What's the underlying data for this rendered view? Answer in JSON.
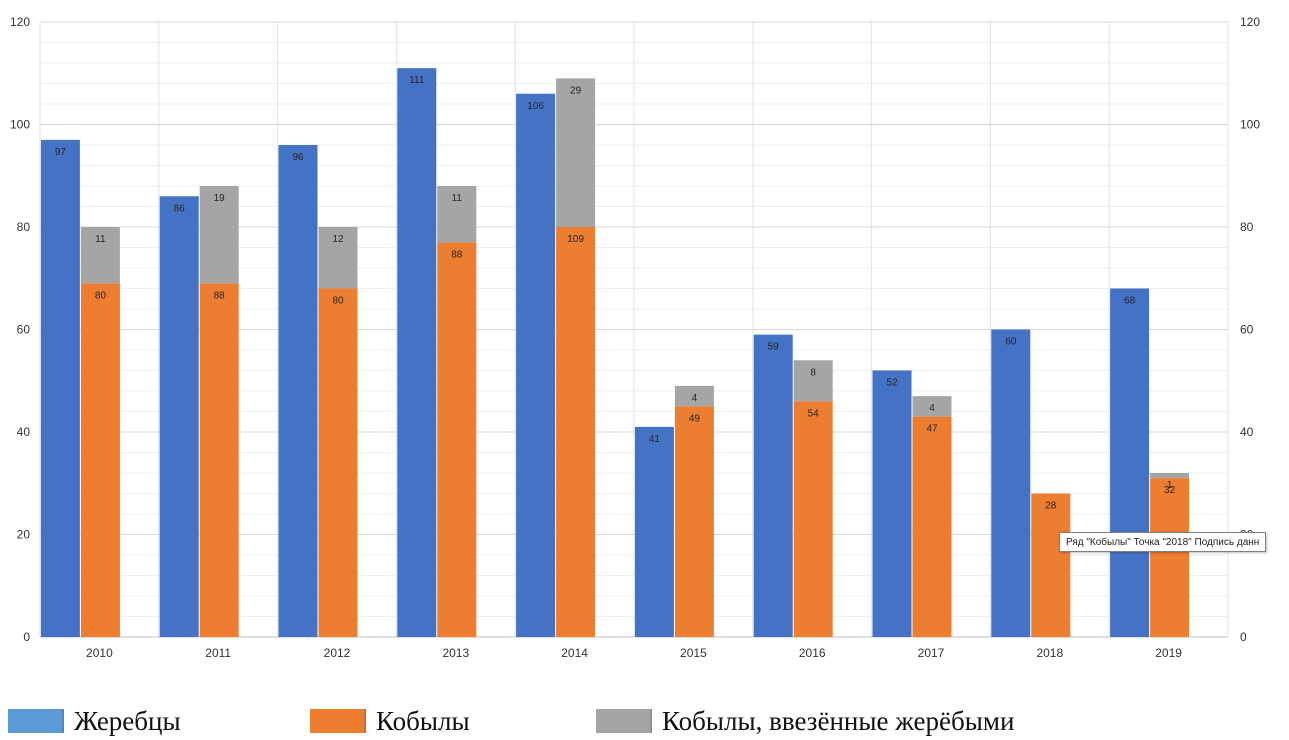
{
  "chart_data": {
    "type": "bar",
    "title": "",
    "xlabel": "",
    "ylabel": "",
    "ylim": [
      0,
      120
    ],
    "yticks": [
      0,
      20,
      40,
      60,
      80,
      100,
      120
    ],
    "grid": true,
    "secondary_axis": true,
    "legend_position": "bottom",
    "categories": [
      "2010",
      "2011",
      "2012",
      "2013",
      "2014",
      "2015",
      "2016",
      "2017",
      "2018",
      "2019"
    ],
    "series": [
      {
        "name": "Жеребцы",
        "stack": "stallions",
        "color": "#4472C4",
        "values": [
          97,
          86,
          96,
          111,
          106,
          41,
          59,
          52,
          60,
          68
        ],
        "labels": [
          "97",
          "86",
          "96",
          "111",
          "106",
          "41",
          "59",
          "52",
          "60",
          "68"
        ]
      },
      {
        "name": "Кобылы",
        "stack": "mares",
        "color": "#ED7D31",
        "values": [
          69,
          69,
          68,
          77,
          80,
          45,
          46,
          43,
          28,
          31
        ],
        "labels": [
          "80",
          "88",
          "80",
          "88",
          "109",
          "49",
          "54",
          "47",
          "28",
          "32"
        ]
      },
      {
        "name": "Кобылы, ввезённые жерёбыми",
        "stack": "mares",
        "color": "#A5A5A5",
        "values": [
          11,
          19,
          12,
          11,
          29,
          4,
          8,
          4,
          0,
          1
        ],
        "labels": [
          "11",
          "19",
          "12",
          "11",
          "29",
          "4",
          "8",
          "4",
          "",
          "1"
        ]
      }
    ],
    "tooltip": "Ряд \"Кобылы\" Точка \"2018\" Подпись данн"
  },
  "legend": {
    "items": [
      {
        "label": "Жеребцы",
        "color": "#5B9BD5"
      },
      {
        "label": "Кобылы",
        "color": "#ED7D31"
      },
      {
        "label": "Кобылы, ввезённые жерёбыми",
        "color": "#A5A5A5"
      }
    ]
  }
}
